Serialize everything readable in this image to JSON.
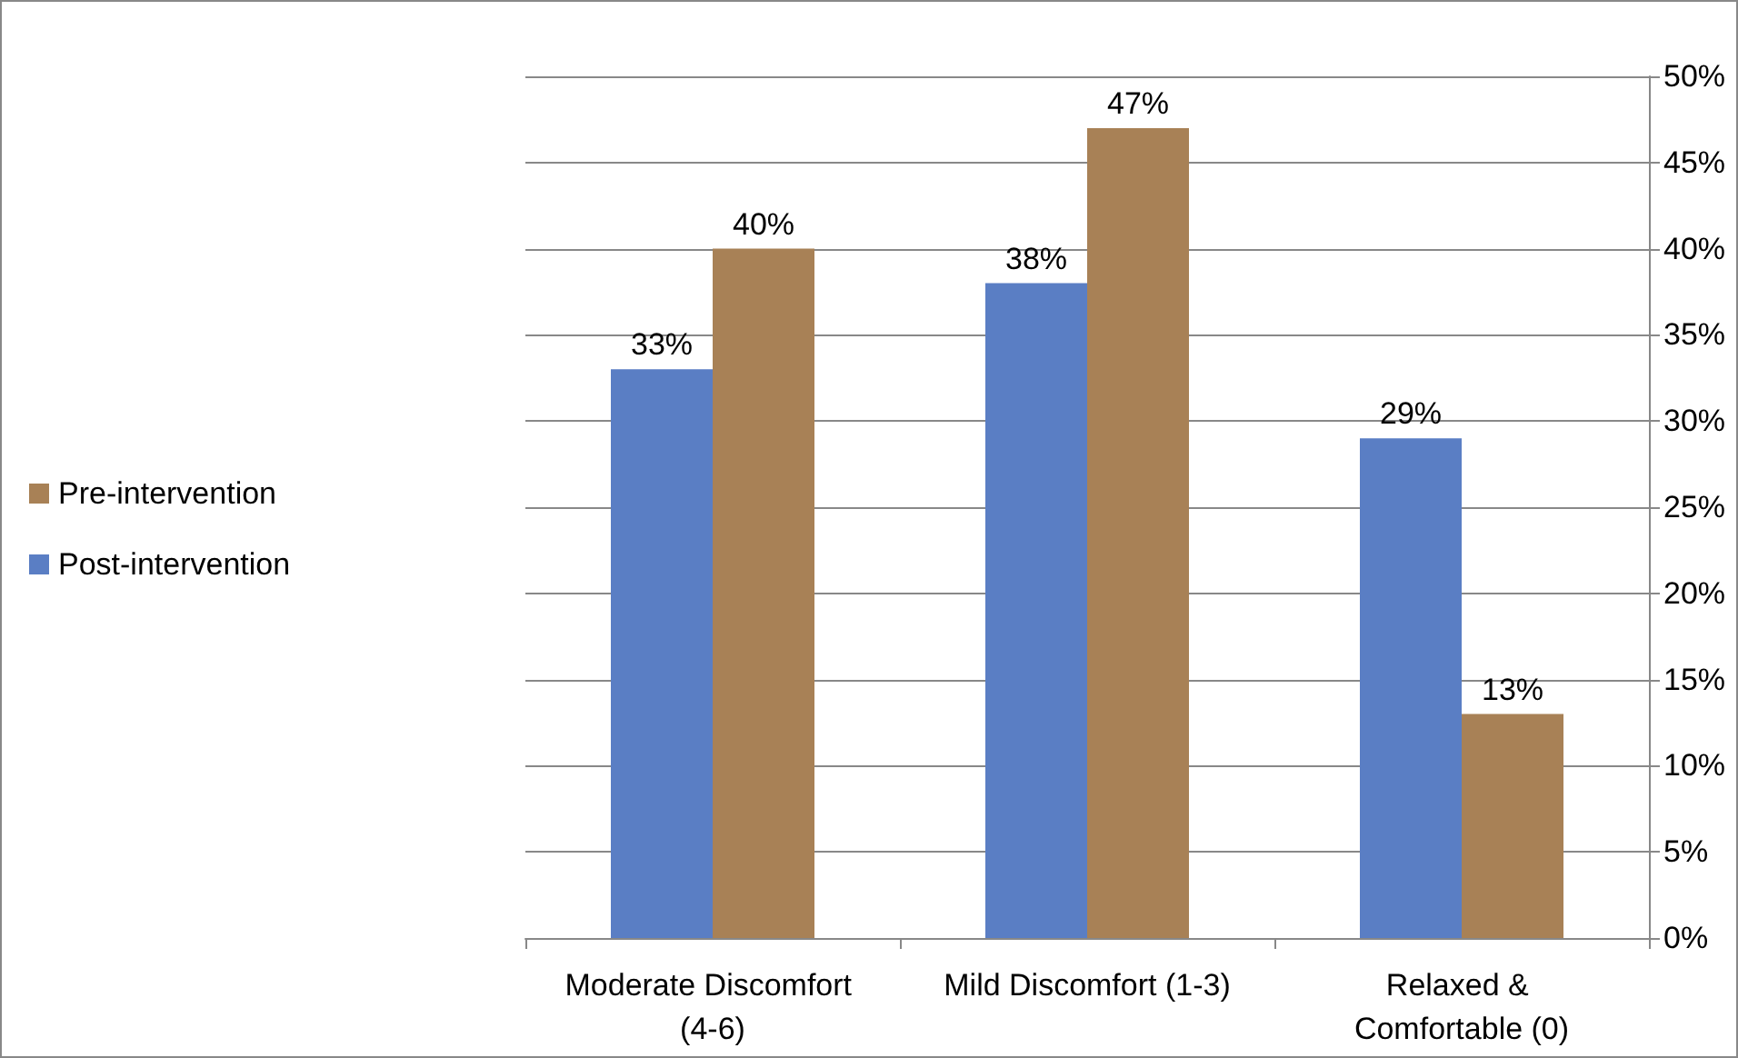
{
  "chart_data": {
    "type": "bar",
    "categories": [
      "Moderate Discomfort (4-6)",
      "Mild Discomfort (1-3)",
      "Relaxed & Comfortable (0)"
    ],
    "series": [
      {
        "name": "Post-intervention",
        "color": "#5a7ec4",
        "values": [
          33,
          38,
          29
        ],
        "value_labels": [
          "33%",
          "38%",
          "29%"
        ]
      },
      {
        "name": "Pre-intervention",
        "color": "#a88156",
        "values": [
          40,
          47,
          13
        ],
        "value_labels": [
          "40%",
          "47%",
          "13%"
        ]
      }
    ],
    "ylim": [
      0,
      50
    ],
    "yticks": [
      {
        "value": 0,
        "label": "0%"
      },
      {
        "value": 5,
        "label": "5%"
      },
      {
        "value": 10,
        "label": "10%"
      },
      {
        "value": 15,
        "label": "15%"
      },
      {
        "value": 20,
        "label": "20%"
      },
      {
        "value": 25,
        "label": "25%"
      },
      {
        "value": 30,
        "label": "30%"
      },
      {
        "value": 35,
        "label": "35%"
      },
      {
        "value": 40,
        "label": "40%"
      },
      {
        "value": 45,
        "label": "45%"
      },
      {
        "value": 50,
        "label": "50%"
      }
    ],
    "grid": "y",
    "legend": "left"
  }
}
